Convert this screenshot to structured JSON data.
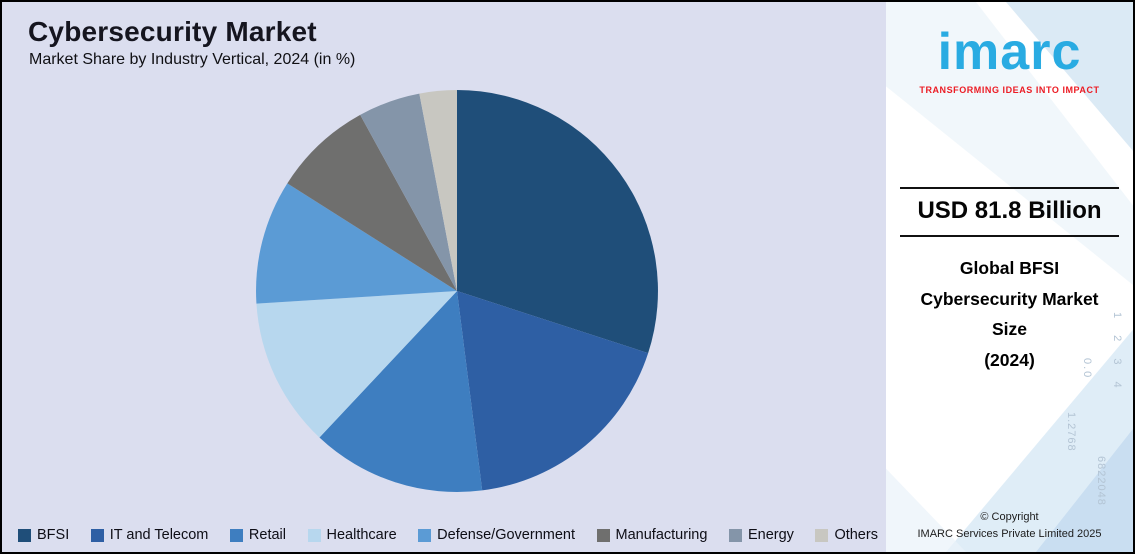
{
  "title": "Cybersecurity Market",
  "subtitle": "Market Share by Industry Vertical, 2024 (in %)",
  "chart_data": {
    "type": "pie",
    "title": "Cybersecurity Market",
    "subtitle": "Market Share by Industry Vertical, 2024 (in %)",
    "unit": "%",
    "start_angle_deg": -90,
    "direction": "clockwise",
    "legend_position": "bottom",
    "segments": [
      {
        "label": "BFSI",
        "value": 30,
        "color": "#1F4E79"
      },
      {
        "label": "IT and Telecom",
        "value": 18,
        "color": "#2E5FA4"
      },
      {
        "label": "Retail",
        "value": 14,
        "color": "#3E7EC0"
      },
      {
        "label": "Healthcare",
        "value": 12,
        "color": "#B7D7EE"
      },
      {
        "label": "Defense/Government",
        "value": 10,
        "color": "#5B9BD5"
      },
      {
        "label": "Manufacturing",
        "value": 8,
        "color": "#6F6F6E"
      },
      {
        "label": "Energy",
        "value": 5,
        "color": "#8495A9"
      },
      {
        "label": "Others",
        "value": 3,
        "color": "#C8C7C1"
      }
    ]
  },
  "right_panel": {
    "logo_text": "imarc",
    "tagline": "TRANSFORMING IDEAS INTO IMPACT",
    "stat_value": "USD 81.8 Billion",
    "stat_label_lines": [
      "Global BFSI",
      "Cybersecurity Market",
      "Size",
      "(2024)"
    ],
    "copyright_line1": "© Copyright",
    "copyright_line2": "IMARC Services Private Limited 2025",
    "decorative_numbers": [
      "1 2 3 4",
      "0.0",
      "6822048",
      "1.2768"
    ]
  },
  "colors": {
    "background": "#DBDEEF",
    "panel_background": "#FFFFFF",
    "logo_blue": "#29ABE2",
    "tagline_red": "#EC1C24",
    "title_text": "#15151F"
  }
}
